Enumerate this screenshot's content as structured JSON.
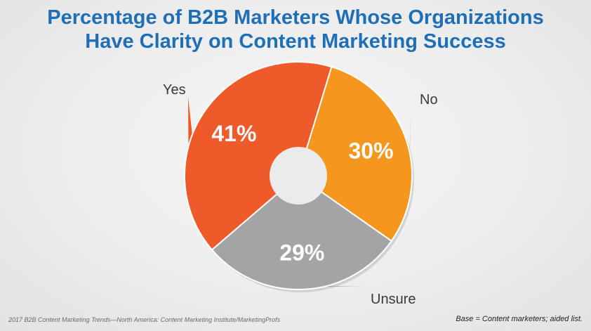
{
  "chart_data": {
    "type": "pie",
    "title": "Percentage of B2B Marketers Whose Organizations Have Clarity on Content Marketing Success",
    "title_lines": [
      "Percentage of B2B Marketers Whose Organizations",
      "Have Clarity on Content Marketing Success"
    ],
    "slices": [
      {
        "label": "No",
        "value": 30,
        "value_label": "30%",
        "color": "#f5961f"
      },
      {
        "label": "Unsure",
        "value": 29,
        "value_label": "29%",
        "color": "#a4a4a6"
      },
      {
        "label": "Yes",
        "value": 41,
        "value_label": "41%",
        "color": "#ef5a2b"
      }
    ],
    "donut": true
  },
  "footer": {
    "source": "2017 B2B Content Marketing Trends—North America: Content Marketing Institute/MarketingProfs",
    "base_note": "Base = Content marketers; aided list."
  }
}
